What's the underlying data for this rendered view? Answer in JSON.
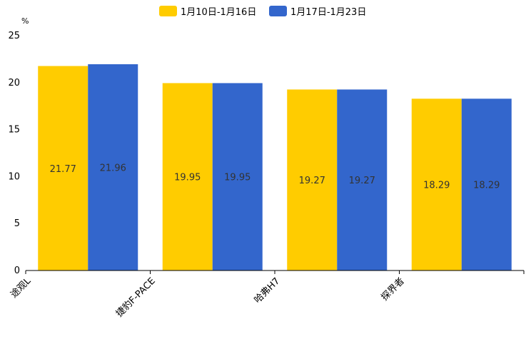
{
  "chart_data": {
    "type": "bar",
    "unit": "%",
    "categories": [
      "途观L",
      "捷豹F-PACE",
      "哈弗H7",
      "探界者"
    ],
    "series": [
      {
        "name": "1月10日-1月16日",
        "color": "#FFCC00",
        "values": [
          21.77,
          19.95,
          19.27,
          18.29
        ],
        "labels": [
          "21.77",
          "19.95",
          "19.27",
          "18.29"
        ]
      },
      {
        "name": "1月17日-1月23日",
        "color": "#3366CC",
        "values": [
          21.96,
          19.95,
          19.27,
          18.29
        ],
        "labels": [
          "21.96",
          "19.95",
          "19.27",
          "18.29"
        ]
      }
    ],
    "yticks": [
      0,
      5,
      10,
      15,
      20,
      25
    ],
    "ylim": [
      0,
      25
    ],
    "legend_position": "top",
    "grid": false
  }
}
